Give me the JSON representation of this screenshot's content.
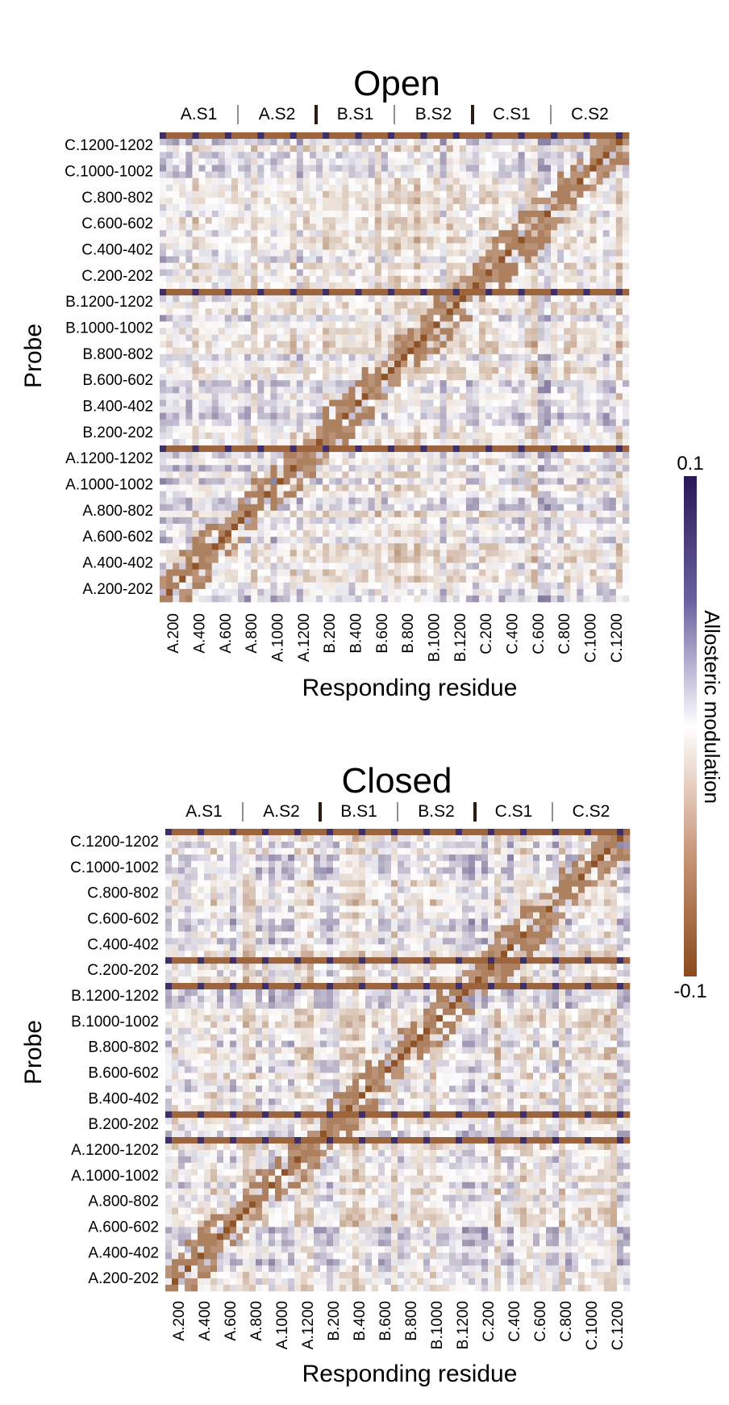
{
  "chart_data": [
    {
      "type": "heatmap",
      "title": "Open",
      "xlabel": "Responding residue",
      "ylabel": "Probe",
      "segment_labels": [
        "A.S1",
        "A.S2",
        "B.S1",
        "B.S2",
        "C.S1",
        "C.S2"
      ],
      "x_ticks": [
        "A.200",
        "A.400",
        "A.600",
        "A.800",
        "A.1000",
        "A.1200",
        "B.200",
        "B.400",
        "B.600",
        "B.800",
        "B.1000",
        "B.1200",
        "C.200",
        "C.400",
        "C.600",
        "C.800",
        "C.1000",
        "C.1200"
      ],
      "y_ticks": [
        "C.1200-1202",
        "C.1000-1002",
        "C.800-802",
        "C.600-602",
        "C.400-402",
        "C.200-202",
        "B.1200-1202",
        "B.1000-1002",
        "B.800-802",
        "B.600-602",
        "B.400-402",
        "B.200-202",
        "A.1200-1202",
        "A.1000-1002",
        "A.800-802",
        "A.600-602",
        "A.400-402",
        "A.200-202"
      ]
    },
    {
      "type": "heatmap",
      "title": "Closed",
      "xlabel": "Responding residue",
      "ylabel": "Probe",
      "segment_labels": [
        "A.S1",
        "A.S2",
        "B.S1",
        "B.S2",
        "C.S1",
        "C.S2"
      ],
      "x_ticks": [
        "A.200",
        "A.400",
        "A.600",
        "A.800",
        "A.1000",
        "A.1200",
        "B.200",
        "B.400",
        "B.600",
        "B.800",
        "B.1000",
        "B.1200",
        "C.200",
        "C.400",
        "C.600",
        "C.800",
        "C.1000",
        "C.1200"
      ],
      "y_ticks": [
        "C.1200-1202",
        "C.1000-1002",
        "C.800-802",
        "C.600-602",
        "C.400-402",
        "C.200-202",
        "B.1200-1202",
        "B.1000-1002",
        "B.800-802",
        "B.600-602",
        "B.400-402",
        "B.200-202",
        "A.1200-1202",
        "A.1000-1002",
        "A.800-802",
        "A.600-602",
        "A.400-402",
        "A.200-202"
      ]
    }
  ],
  "colorbar": {
    "label": "Allosteric modulation",
    "max_label": "0.1",
    "min_label": "-0.1",
    "range": [
      -0.1,
      0.1
    ],
    "colors": {
      "high": "#2e1a5e",
      "mid": "#ffffff",
      "low": "#8b4513"
    }
  }
}
